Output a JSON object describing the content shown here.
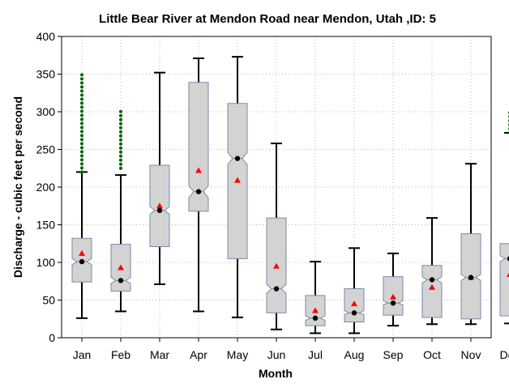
{
  "chart_data": {
    "type": "box",
    "title": "Little Bear River at Mendon Road near Mendon, Utah ,ID: 5",
    "xlabel": "Month",
    "ylabel": "Discharge - cubic feet per second",
    "ylim": [
      0,
      400
    ],
    "yticks": [
      "0",
      "50",
      "100",
      "150",
      "200",
      "250",
      "300",
      "350",
      "400"
    ],
    "grid": true,
    "categories": [
      "Jan",
      "Feb",
      "Mar",
      "Apr",
      "May",
      "Jun",
      "Jul",
      "Aug",
      "Sep",
      "Oct",
      "Nov",
      "Dec"
    ],
    "boxes": [
      {
        "whisker_low": 26,
        "q1": 74,
        "notch_low": 97,
        "median": 101,
        "notch_high": 105,
        "q3": 132,
        "whisker_high": 220,
        "mean": 112,
        "outliers_range": [
          220,
          352
        ]
      },
      {
        "whisker_low": 35,
        "q1": 62,
        "notch_low": 72,
        "median": 76,
        "notch_high": 80,
        "q3": 124,
        "whisker_high": 216,
        "mean": 93,
        "outliers_range": [
          225,
          305
        ]
      },
      {
        "whisker_low": 71,
        "q1": 121,
        "notch_low": 164,
        "median": 169,
        "notch_high": 174,
        "q3": 229,
        "whisker_high": 352,
        "mean": 175,
        "outliers_range": null
      },
      {
        "whisker_low": 35,
        "q1": 168,
        "notch_low": 186,
        "median": 194,
        "notch_high": 202,
        "q3": 339,
        "whisker_high": 371,
        "mean": 222,
        "outliers_range": null
      },
      {
        "whisker_low": 27,
        "q1": 105,
        "notch_low": 230,
        "median": 238,
        "notch_high": 246,
        "q3": 311,
        "whisker_high": 373,
        "mean": 209,
        "outliers_range": null
      },
      {
        "whisker_low": 11,
        "q1": 33,
        "notch_low": 59,
        "median": 65,
        "notch_high": 71,
        "q3": 159,
        "whisker_high": 258,
        "mean": 95,
        "outliers_range": null
      },
      {
        "whisker_low": 6,
        "q1": 16,
        "notch_low": 23,
        "median": 26,
        "notch_high": 29,
        "q3": 56,
        "whisker_high": 101,
        "mean": 36,
        "outliers_range": null
      },
      {
        "whisker_low": 6,
        "q1": 21,
        "notch_low": 31,
        "median": 33,
        "notch_high": 36,
        "q3": 65,
        "whisker_high": 119,
        "mean": 45,
        "outliers_range": null
      },
      {
        "whisker_low": 16,
        "q1": 30,
        "notch_low": 44,
        "median": 46,
        "notch_high": 49,
        "q3": 81,
        "whisker_high": 112,
        "mean": 54,
        "outliers_range": null
      },
      {
        "whisker_low": 18,
        "q1": 27,
        "notch_low": 73,
        "median": 77,
        "notch_high": 81,
        "q3": 96,
        "whisker_high": 159,
        "mean": 67,
        "outliers_range": null
      },
      {
        "whisker_low": 18,
        "q1": 25,
        "notch_low": 76,
        "median": 80,
        "notch_high": 84,
        "q3": 138,
        "whisker_high": 231,
        "mean": 80,
        "outliers_range": null
      },
      {
        "whisker_low": 19,
        "q1": 29,
        "notch_low": 101,
        "median": 105,
        "notch_high": 109,
        "q3": 125,
        "whisker_high": 272,
        "mean": 84,
        "outliers_range": [
          272,
          302
        ]
      }
    ],
    "colors": {
      "box_fill": "#d3d3d3",
      "box_stroke": "#7a8aa8",
      "whisker": "#000000",
      "median_point": "#000000",
      "mean_marker": "#ff0000",
      "outlier": "#006400",
      "grid": "#b8b8b8"
    }
  }
}
